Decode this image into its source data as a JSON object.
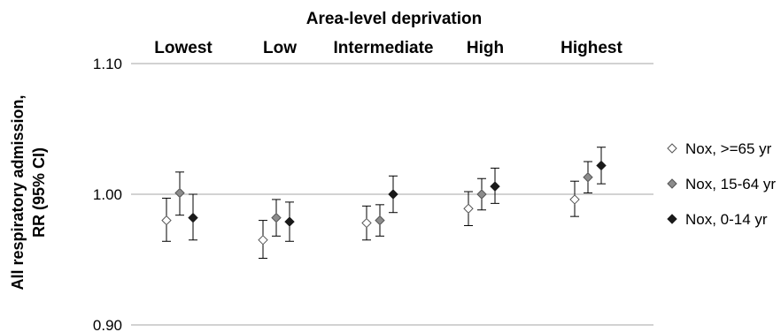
{
  "chart_data": {
    "type": "scatter",
    "title": "Area-level deprivation",
    "ylabel_lines": [
      "All respiratory admission,",
      "RR (95% CI)"
    ],
    "categories": [
      "Lowest",
      "Low",
      "Intermediate",
      "High",
      "Highest"
    ],
    "ylim": [
      0.9,
      1.1
    ],
    "yticks": [
      0.9,
      1.0,
      1.1
    ],
    "ytick_labels": [
      "0.90",
      "1.00",
      "1.10"
    ],
    "grid": true,
    "legend_position": "right",
    "series": [
      {
        "name": "Nox, >=65 yr",
        "marker": "open-diamond",
        "color": "#ffffff",
        "values": [
          0.98,
          0.965,
          0.978,
          0.989,
          0.996
        ],
        "ci_low": [
          0.964,
          0.951,
          0.965,
          0.976,
          0.983
        ],
        "ci_high": [
          0.997,
          0.98,
          0.991,
          1.002,
          1.01
        ]
      },
      {
        "name": "Nox, 15-64 yr",
        "marker": "grey-diamond",
        "color": "#8c8c8c",
        "values": [
          1.001,
          0.982,
          0.98,
          1.0,
          1.013
        ],
        "ci_low": [
          0.984,
          0.968,
          0.968,
          0.988,
          1.001
        ],
        "ci_high": [
          1.017,
          0.996,
          0.992,
          1.012,
          1.025
        ]
      },
      {
        "name": "Nox, 0-14 yr",
        "marker": "black-diamond",
        "color": "#1a1a1a",
        "values": [
          0.982,
          0.979,
          1.0,
          1.006,
          1.022
        ],
        "ci_low": [
          0.965,
          0.964,
          0.986,
          0.993,
          1.008
        ],
        "ci_high": [
          1.0,
          0.994,
          1.014,
          1.02,
          1.036
        ]
      }
    ]
  }
}
